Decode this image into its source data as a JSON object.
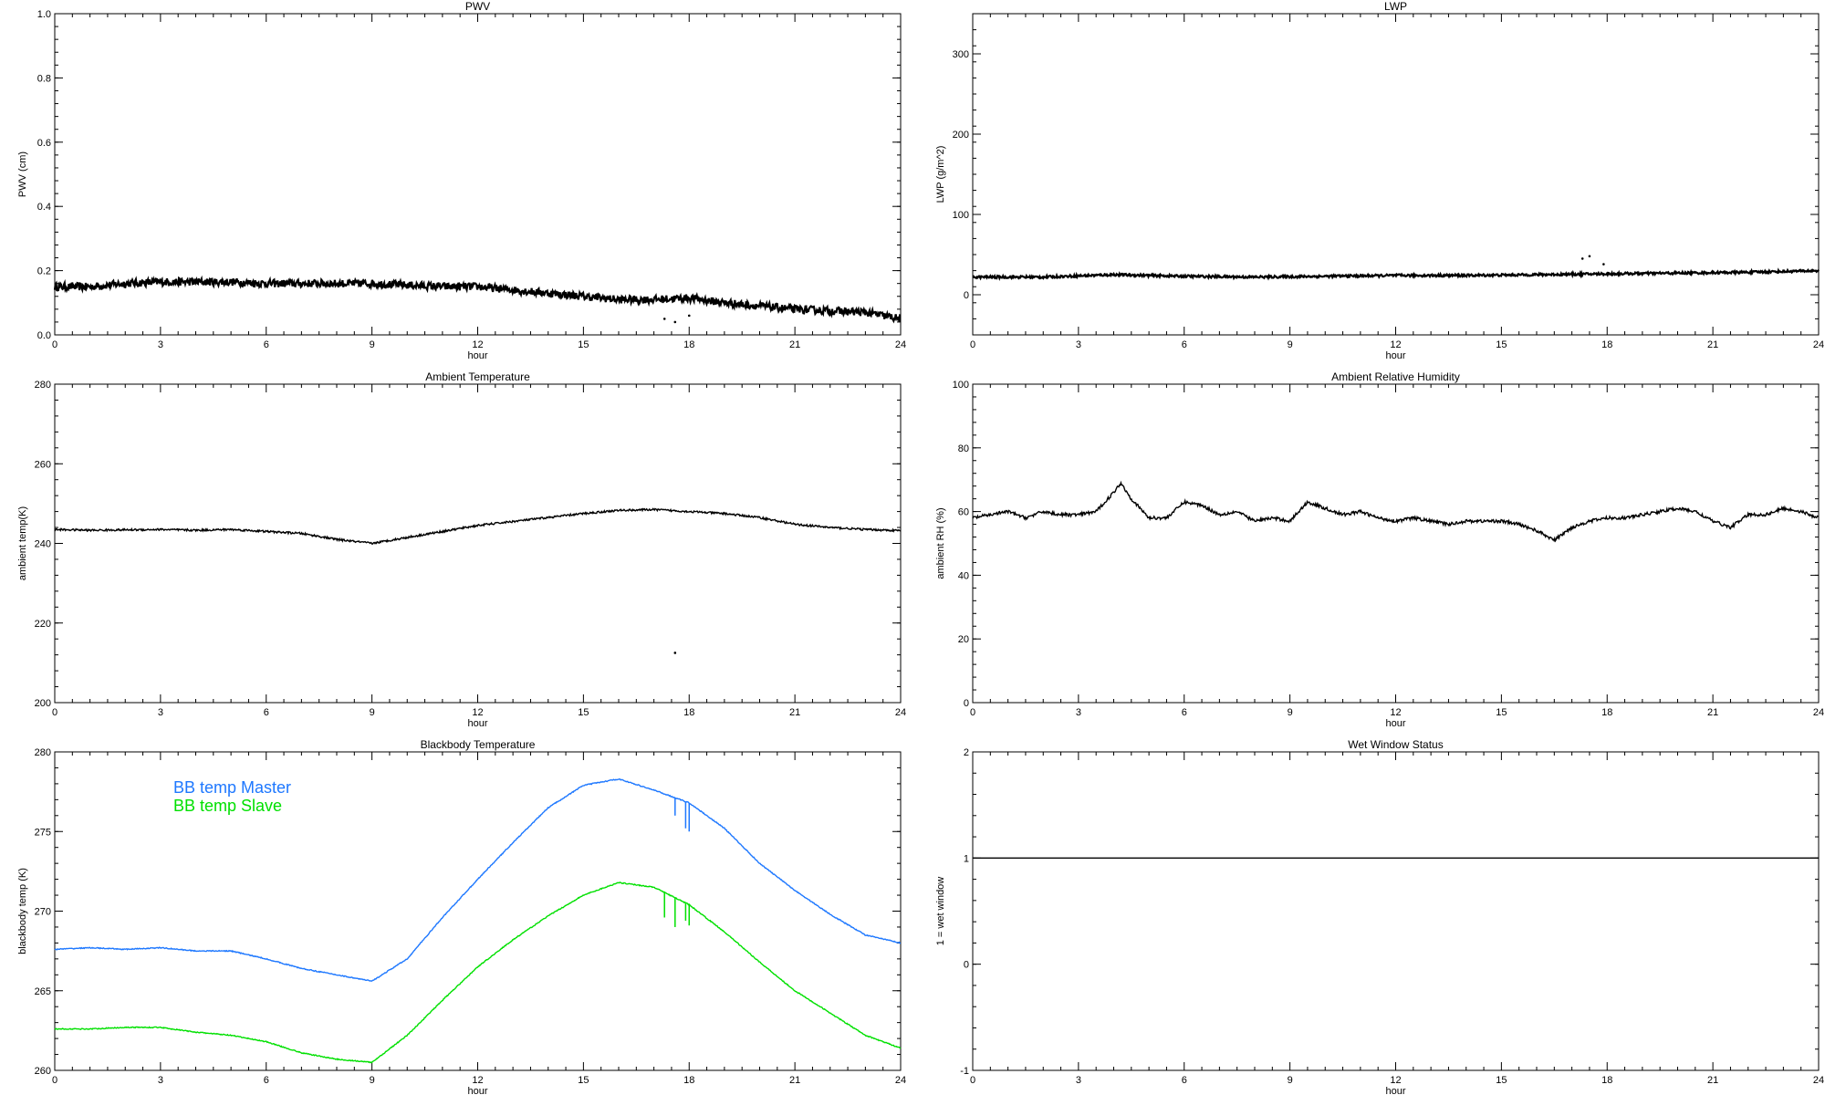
{
  "chart_data": [
    {
      "type": "line",
      "title": "PWV",
      "xlabel": "hour",
      "ylabel": "PWV (cm)",
      "xlim": [
        0,
        24
      ],
      "ylim": [
        0.0,
        1.0
      ],
      "xticks": [
        "0",
        "3",
        "6",
        "9",
        "12",
        "15",
        "18",
        "21",
        "24"
      ],
      "yticks": [
        "0.0",
        "0.2",
        "0.4",
        "0.6",
        "0.8",
        "1.0"
      ],
      "series": [
        {
          "color": "#000000",
          "noise": 0.012,
          "x": [
            0,
            1,
            2,
            3,
            4,
            5,
            6,
            7,
            8,
            9,
            10,
            11,
            12,
            13,
            14,
            15,
            16,
            17,
            18,
            19,
            20,
            21,
            22,
            23,
            24
          ],
          "y": [
            0.15,
            0.15,
            0.16,
            0.165,
            0.165,
            0.165,
            0.16,
            0.16,
            0.16,
            0.16,
            0.155,
            0.15,
            0.15,
            0.14,
            0.13,
            0.12,
            0.11,
            0.11,
            0.115,
            0.1,
            0.09,
            0.08,
            0.075,
            0.07,
            0.05
          ]
        }
      ],
      "outliers": [
        {
          "x": 17.3,
          "y": 0.05
        },
        {
          "x": 17.6,
          "y": 0.04
        },
        {
          "x": 18.0,
          "y": 0.06
        }
      ]
    },
    {
      "type": "line",
      "title": "LWP",
      "xlabel": "hour",
      "ylabel": "LWP (g/m^2)",
      "xlim": [
        0,
        24
      ],
      "ylim": [
        -50,
        350
      ],
      "xticks": [
        "0",
        "3",
        "6",
        "9",
        "12",
        "15",
        "18",
        "21",
        "24"
      ],
      "yticks": [
        "0",
        "100",
        "200",
        "300"
      ],
      "series": [
        {
          "color": "#000000",
          "noise": 1.5,
          "x": [
            0,
            2,
            4,
            6,
            8,
            10,
            12,
            14,
            16,
            18,
            20,
            22,
            24
          ],
          "y": [
            22,
            22,
            25,
            23,
            22,
            23,
            24,
            24,
            25,
            26,
            27,
            28,
            30
          ]
        }
      ],
      "outliers": [
        {
          "x": 17.3,
          "y": 45
        },
        {
          "x": 17.5,
          "y": 48
        },
        {
          "x": 17.9,
          "y": 38
        }
      ]
    },
    {
      "type": "line",
      "title": "Ambient Temperature",
      "xlabel": "hour",
      "ylabel": "ambient temp(K)",
      "xlim": [
        0,
        24
      ],
      "ylim": [
        200,
        280
      ],
      "xticks": [
        "0",
        "3",
        "6",
        "9",
        "12",
        "15",
        "18",
        "21",
        "24"
      ],
      "yticks": [
        "200",
        "220",
        "240",
        "260",
        "280"
      ],
      "series": [
        {
          "color": "#000000",
          "noise": 0.25,
          "x": [
            0,
            1,
            2,
            3,
            4,
            5,
            6,
            7,
            8,
            9,
            10,
            11,
            12,
            13,
            14,
            15,
            16,
            17,
            18,
            19,
            20,
            21,
            22,
            23,
            24
          ],
          "y": [
            243.5,
            243.3,
            243.4,
            243.5,
            243.3,
            243.5,
            243,
            242.5,
            241,
            240,
            241.5,
            243,
            244.5,
            245.5,
            246.5,
            247.5,
            248.3,
            248.5,
            248,
            247.5,
            246.5,
            244.8,
            244,
            243.5,
            243.2
          ]
        }
      ],
      "outliers": [
        {
          "x": 17.6,
          "y": 212.5
        }
      ]
    },
    {
      "type": "line",
      "title": "Ambient Relative Humidity",
      "xlabel": "hour",
      "ylabel": "ambient RH (%)",
      "xlim": [
        0,
        24
      ],
      "ylim": [
        0,
        100
      ],
      "xticks": [
        "0",
        "3",
        "6",
        "9",
        "12",
        "15",
        "18",
        "21",
        "24"
      ],
      "yticks": [
        "0",
        "20",
        "40",
        "60",
        "80",
        "100"
      ],
      "series": [
        {
          "color": "#000000",
          "noise": 0.5,
          "x": [
            0,
            0.5,
            1,
            1.5,
            2,
            2.5,
            3,
            3.5,
            4,
            4.2,
            4.5,
            5,
            5.5,
            6,
            6.5,
            7,
            7.5,
            8,
            8.5,
            9,
            9.5,
            10,
            10.5,
            11,
            11.5,
            12,
            12.5,
            13,
            13.5,
            14,
            14.5,
            15,
            15.5,
            16,
            16.5,
            17,
            17.5,
            18,
            18.5,
            19,
            19.5,
            20,
            20.5,
            21,
            21.5,
            22,
            22.5,
            23,
            23.5,
            24
          ],
          "y": [
            58,
            59,
            60,
            58,
            60,
            59,
            59,
            60,
            66,
            69,
            64,
            58,
            58,
            63,
            62,
            59,
            60,
            57,
            58,
            57,
            63,
            61,
            59,
            60,
            58,
            57,
            58,
            57,
            56,
            57,
            57,
            57,
            56,
            54,
            51,
            55,
            57,
            58,
            58,
            59,
            60,
            61,
            60,
            57,
            55,
            59,
            59,
            61,
            60,
            58
          ]
        }
      ]
    },
    {
      "type": "line",
      "title": "Blackbody Temperature",
      "xlabel": "hour",
      "ylabel": "blackbody temp (K)",
      "xlim": [
        0,
        24
      ],
      "ylim": [
        260,
        280
      ],
      "xticks": [
        "0",
        "3",
        "6",
        "9",
        "12",
        "15",
        "18",
        "21",
        "24"
      ],
      "yticks": [
        "260",
        "265",
        "270",
        "275",
        "280"
      ],
      "series": [
        {
          "name": "BB temp Master",
          "color": "#1e78ff",
          "noise": 0.03,
          "x": [
            0,
            1,
            2,
            3,
            4,
            5,
            6,
            7,
            8,
            9,
            10,
            11,
            12,
            13,
            14,
            15,
            16,
            17,
            18,
            19,
            20,
            21,
            22,
            23,
            24
          ],
          "y": [
            267.6,
            267.7,
            267.6,
            267.7,
            267.5,
            267.5,
            267.0,
            266.4,
            266.0,
            265.6,
            267.0,
            269.6,
            272.0,
            274.3,
            276.5,
            277.9,
            278.3,
            277.6,
            276.8,
            275.2,
            273.0,
            271.3,
            269.8,
            268.5,
            268.0
          ],
          "spikes": [
            {
              "x": 17.6,
              "y": 276.0
            },
            {
              "x": 17.9,
              "y": 275.2
            },
            {
              "x": 18.0,
              "y": 275.0
            }
          ]
        },
        {
          "name": "BB temp Slave",
          "color": "#00e000",
          "noise": 0.03,
          "x": [
            0,
            1,
            2,
            3,
            4,
            5,
            6,
            7,
            8,
            9,
            10,
            11,
            12,
            13,
            14,
            15,
            16,
            17,
            18,
            19,
            20,
            21,
            22,
            23,
            24
          ],
          "y": [
            262.6,
            262.6,
            262.7,
            262.7,
            262.4,
            262.2,
            261.8,
            261.1,
            260.7,
            260.5,
            262.2,
            264.4,
            266.5,
            268.2,
            269.7,
            271.0,
            271.8,
            271.5,
            270.4,
            268.7,
            266.8,
            265.0,
            263.6,
            262.2,
            261.4
          ],
          "spikes": [
            {
              "x": 17.3,
              "y": 269.6
            },
            {
              "x": 17.6,
              "y": 269.0
            },
            {
              "x": 17.9,
              "y": 269.4
            },
            {
              "x": 18.0,
              "y": 269.1
            }
          ]
        }
      ],
      "legend": "top-left"
    },
    {
      "type": "line",
      "title": "Wet Window Status",
      "xlabel": "hour",
      "ylabel": "1 = wet window",
      "xlim": [
        0,
        24
      ],
      "ylim": [
        -1,
        2
      ],
      "xticks": [
        "0",
        "3",
        "6",
        "9",
        "12",
        "15",
        "18",
        "21",
        "24"
      ],
      "yticks": [
        "-1",
        "0",
        "1",
        "2"
      ],
      "series": [
        {
          "color": "#000000",
          "noise": 0,
          "x": [
            0,
            24
          ],
          "y": [
            1,
            1
          ]
        }
      ]
    }
  ]
}
